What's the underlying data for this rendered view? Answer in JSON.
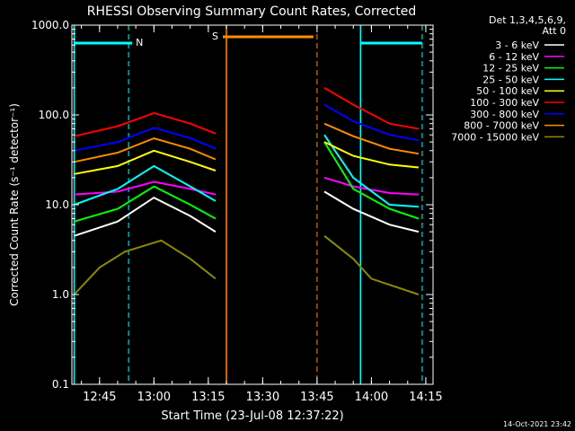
{
  "chart_data": {
    "type": "line",
    "title": "RHESSI Observing Summary Count Rates, Corrected",
    "xlabel": "Start Time (23-Jul-08 12:37:22)",
    "ylabel": "Corrected Count Rate (s⁻¹ detector⁻¹)",
    "y_scale": "log",
    "ylim": [
      0.1,
      1000.0
    ],
    "xlim": [
      "12:37:22",
      "14:17:00"
    ],
    "y_ticks": [
      0.1,
      1.0,
      10.0,
      100.0,
      1000.0
    ],
    "y_tick_labels": [
      "0.1",
      "1.0",
      "10.0",
      "100.0",
      "1000.0"
    ],
    "x_ticks": [
      "12:45",
      "13:00",
      "13:15",
      "13:30",
      "13:45",
      "14:00",
      "14:15"
    ],
    "legend_title": [
      "Det 1,3,4,5,6,9,",
      "Att 0"
    ],
    "legend_position": "right",
    "grid": false,
    "background": "#000000",
    "series": [
      {
        "name": "3 - 6 keV",
        "color": "#ffffff",
        "values": [
          {
            "t": "12:38",
            "y": 4.5
          },
          {
            "t": "12:50",
            "y": 6.5
          },
          {
            "t": "13:00",
            "y": 12
          },
          {
            "t": "13:10",
            "y": 7.5
          },
          {
            "t": "13:17",
            "y": 5
          },
          {
            "t": "13:47",
            "y": 14
          },
          {
            "t": "13:55",
            "y": 9
          },
          {
            "t": "14:05",
            "y": 6
          },
          {
            "t": "14:13",
            "y": 5
          }
        ]
      },
      {
        "name": "6 - 12 keV",
        "color": "#ff00ff",
        "values": [
          {
            "t": "12:38",
            "y": 13
          },
          {
            "t": "12:50",
            "y": 14
          },
          {
            "t": "13:00",
            "y": 18
          },
          {
            "t": "13:10",
            "y": 15
          },
          {
            "t": "13:17",
            "y": 13
          },
          {
            "t": "13:47",
            "y": 20
          },
          {
            "t": "13:55",
            "y": 16
          },
          {
            "t": "14:05",
            "y": 13.5
          },
          {
            "t": "14:13",
            "y": 13
          }
        ]
      },
      {
        "name": "12 - 25 keV",
        "color": "#00ff00",
        "values": [
          {
            "t": "12:38",
            "y": 6.5
          },
          {
            "t": "12:50",
            "y": 9
          },
          {
            "t": "13:00",
            "y": 16
          },
          {
            "t": "13:10",
            "y": 10
          },
          {
            "t": "13:17",
            "y": 7
          },
          {
            "t": "13:47",
            "y": 50
          },
          {
            "t": "13:55",
            "y": 15
          },
          {
            "t": "14:05",
            "y": 9
          },
          {
            "t": "14:13",
            "y": 7
          }
        ]
      },
      {
        "name": "25 - 50 keV",
        "color": "#00ffff",
        "values": [
          {
            "t": "12:38",
            "y": 10
          },
          {
            "t": "12:50",
            "y": 15
          },
          {
            "t": "13:00",
            "y": 27
          },
          {
            "t": "13:10",
            "y": 16
          },
          {
            "t": "13:17",
            "y": 11
          },
          {
            "t": "13:47",
            "y": 60
          },
          {
            "t": "13:55",
            "y": 20
          },
          {
            "t": "14:05",
            "y": 10
          },
          {
            "t": "14:13",
            "y": 9.5
          }
        ]
      },
      {
        "name": "50 - 100 keV",
        "color": "#ffff00",
        "values": [
          {
            "t": "12:38",
            "y": 22
          },
          {
            "t": "12:50",
            "y": 27
          },
          {
            "t": "13:00",
            "y": 40
          },
          {
            "t": "13:10",
            "y": 30
          },
          {
            "t": "13:17",
            "y": 24
          },
          {
            "t": "13:47",
            "y": 50
          },
          {
            "t": "13:55",
            "y": 35
          },
          {
            "t": "14:05",
            "y": 28
          },
          {
            "t": "14:13",
            "y": 26
          }
        ]
      },
      {
        "name": "100 - 300 keV",
        "color": "#ff0000",
        "values": [
          {
            "t": "12:38",
            "y": 58
          },
          {
            "t": "12:50",
            "y": 75
          },
          {
            "t": "13:00",
            "y": 105
          },
          {
            "t": "13:10",
            "y": 80
          },
          {
            "t": "13:17",
            "y": 62
          },
          {
            "t": "13:47",
            "y": 200
          },
          {
            "t": "13:55",
            "y": 130
          },
          {
            "t": "14:05",
            "y": 80
          },
          {
            "t": "14:13",
            "y": 70
          }
        ]
      },
      {
        "name": "300 - 800 keV",
        "color": "#0000ff",
        "values": [
          {
            "t": "12:38",
            "y": 40
          },
          {
            "t": "12:50",
            "y": 50
          },
          {
            "t": "13:00",
            "y": 72
          },
          {
            "t": "13:10",
            "y": 55
          },
          {
            "t": "13:17",
            "y": 42
          },
          {
            "t": "13:47",
            "y": 130
          },
          {
            "t": "13:55",
            "y": 85
          },
          {
            "t": "14:05",
            "y": 60
          },
          {
            "t": "14:13",
            "y": 52
          }
        ]
      },
      {
        "name": "800 - 7000 keV",
        "color": "#ff8c00",
        "values": [
          {
            "t": "12:38",
            "y": 30
          },
          {
            "t": "12:50",
            "y": 38
          },
          {
            "t": "13:00",
            "y": 55
          },
          {
            "t": "13:10",
            "y": 42
          },
          {
            "t": "13:17",
            "y": 32
          },
          {
            "t": "13:47",
            "y": 80
          },
          {
            "t": "13:55",
            "y": 58
          },
          {
            "t": "14:05",
            "y": 42
          },
          {
            "t": "14:13",
            "y": 37
          }
        ]
      },
      {
        "name": "7000 - 15000 keV",
        "color": "#8b8b00",
        "values": [
          {
            "t": "12:38",
            "y": 1.0
          },
          {
            "t": "12:45",
            "y": 2.0
          },
          {
            "t": "12:52",
            "y": 3.0
          },
          {
            "t": "13:02",
            "y": 4.0
          },
          {
            "t": "13:10",
            "y": 2.5
          },
          {
            "t": "13:17",
            "y": 1.5
          },
          {
            "t": "13:47",
            "y": 4.5
          },
          {
            "t": "13:55",
            "y": 2.5
          },
          {
            "t": "14:00",
            "y": 1.5
          },
          {
            "t": "14:13",
            "y": 1.0
          }
        ]
      }
    ],
    "annotations": {
      "night_label": "N",
      "saa_label": "S",
      "night_color": "#00ffff",
      "saa_color": "#ff8c00",
      "night_bars": [
        [
          "12:38",
          "12:54"
        ],
        [
          "13:57",
          "14:14"
        ]
      ],
      "saa_bars": [
        [
          "13:19",
          "13:44"
        ]
      ],
      "night_dashed_lines": [
        "12:53",
        "14:14"
      ],
      "night_solid_lines": [
        "12:38",
        "13:57"
      ],
      "saa_solid_lines": [
        "13:20"
      ],
      "saa_dashed_lines": [
        "13:45"
      ]
    },
    "timestamp": "14-Oct-2021 23:42"
  }
}
